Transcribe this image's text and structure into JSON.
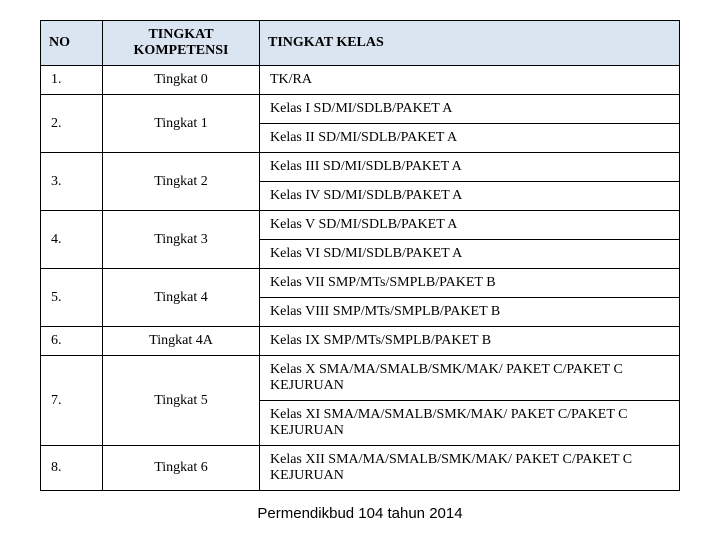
{
  "table": {
    "columns": [
      "NO",
      "TINGKAT KOMPETENSI",
      "TINGKAT KELAS"
    ],
    "rows": [
      {
        "no": "1.",
        "kompetensi": "Tingkat 0",
        "kelas": [
          "TK/RA"
        ]
      },
      {
        "no": "2.",
        "kompetensi": "Tingkat 1",
        "kelas": [
          "Kelas I SD/MI/SDLB/PAKET A",
          "Kelas II SD/MI/SDLB/PAKET A"
        ]
      },
      {
        "no": "3.",
        "kompetensi": "Tingkat 2",
        "kelas": [
          "Kelas III SD/MI/SDLB/PAKET A",
          "Kelas IV SD/MI/SDLB/PAKET A"
        ]
      },
      {
        "no": "4.",
        "kompetensi": "Tingkat 3",
        "kelas": [
          "Kelas V SD/MI/SDLB/PAKET A",
          "Kelas VI SD/MI/SDLB/PAKET A"
        ]
      },
      {
        "no": "5.",
        "kompetensi": "Tingkat 4",
        "kelas": [
          "Kelas VII SMP/MTs/SMPLB/PAKET B",
          "Kelas VIII SMP/MTs/SMPLB/PAKET B"
        ]
      },
      {
        "no": "6.",
        "kompetensi": "Tingkat 4A",
        "kelas": [
          "Kelas IX SMP/MTs/SMPLB/PAKET B"
        ]
      },
      {
        "no": "7.",
        "kompetensi": "Tingkat 5",
        "kelas": [
          "Kelas X SMA/MA/SMALB/SMK/MAK/ PAKET C/PAKET C KEJURUAN",
          "Kelas XI SMA/MA/SMALB/SMK/MAK/ PAKET C/PAKET C KEJURUAN"
        ]
      },
      {
        "no": "8.",
        "kompetensi": "Tingkat 6",
        "kelas": [
          "Kelas XII SMA/MA/SMALB/SMK/MAK/ PAKET C/PAKET C KEJURUAN"
        ]
      }
    ],
    "header_bg": "#dbe5f1",
    "border_color": "#000000",
    "font_family": "Georgia, 'Book Antiqua', serif",
    "header_fontsize": 14,
    "cell_fontsize": 14,
    "col_widths": {
      "no": 45,
      "kompetensi": 140
    }
  },
  "caption": "Permendikbud 104 tahun 2014"
}
